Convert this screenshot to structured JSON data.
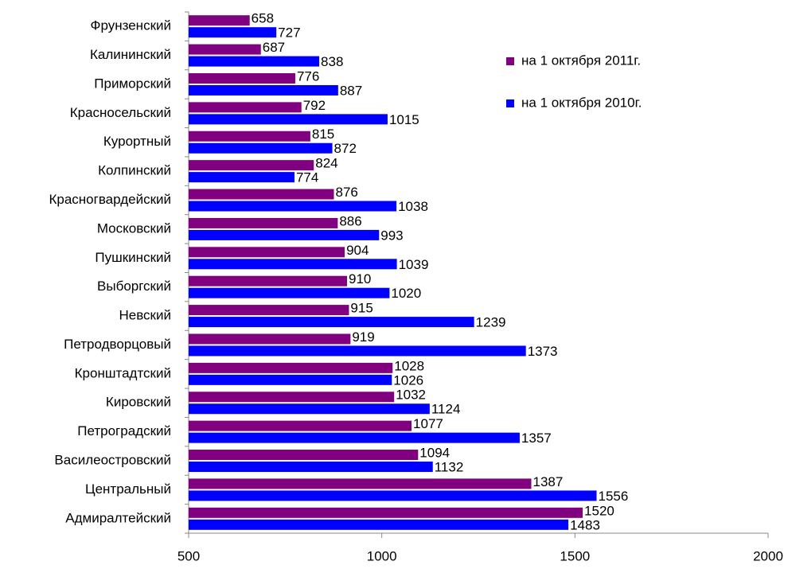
{
  "chart_data": {
    "type": "barh",
    "categories": [
      "Фрунзенский",
      "Калининский",
      "Приморский",
      "Красносельский",
      "Курортный",
      "Колпинский",
      "Красногвардейский",
      "Московский",
      "Пушкинский",
      "Выборгский",
      "Невский",
      "Петродворцовый",
      "Кронштадтский",
      "Кировский",
      "Петроградский",
      "Василеостровский",
      "Центральный",
      "Адмиралтейский"
    ],
    "series": [
      {
        "name": "на 1 октября 2011г.",
        "color": "#800080",
        "values": [
          658,
          687,
          776,
          792,
          815,
          824,
          876,
          886,
          904,
          910,
          915,
          919,
          1028,
          1032,
          1077,
          1094,
          1387,
          1520
        ]
      },
      {
        "name": "на 1 октября 2010г.",
        "color": "#0000ff",
        "values": [
          727,
          838,
          887,
          1015,
          872,
          774,
          1038,
          993,
          1039,
          1020,
          1239,
          1373,
          1026,
          1124,
          1357,
          1132,
          1556,
          1483
        ]
      }
    ],
    "xlim": [
      500,
      2000
    ],
    "xticks": [
      500,
      1000,
      1500,
      2000
    ],
    "legend": "upper right"
  }
}
